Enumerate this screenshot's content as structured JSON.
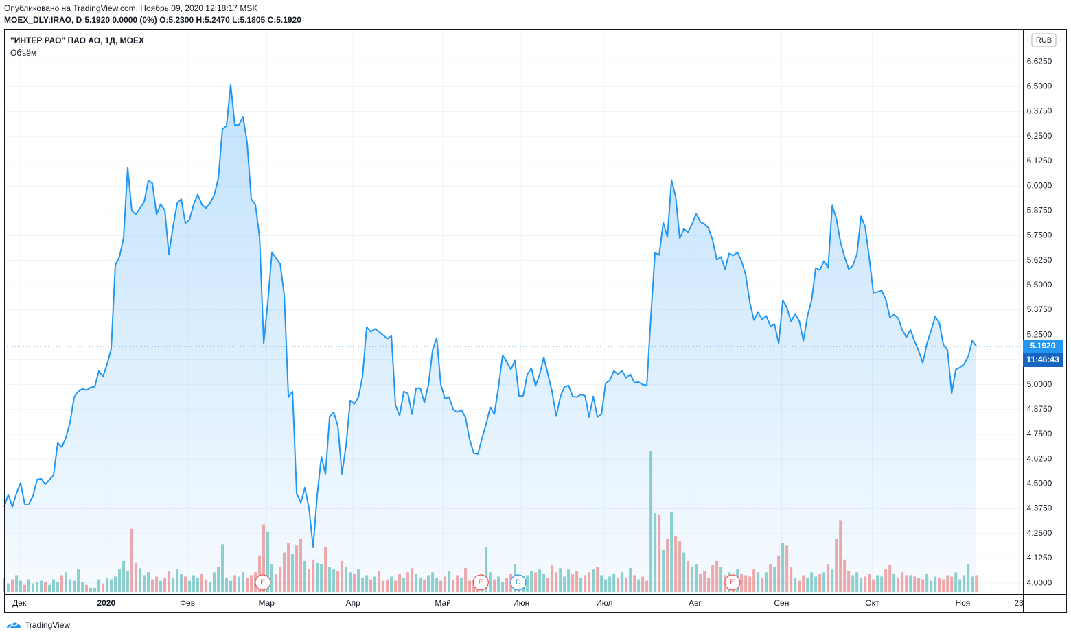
{
  "header": {
    "published": "Опубликовано на TradingView.com, Ноябрь 09, 2020 12:18:17 MSK",
    "symbol": "MOEX_DLY:IRAO, D",
    "quote": "5.1920 0.0000 (0%) O:5.2300 H:5.2470 L:5.1805 C:5.1920"
  },
  "footer": {
    "brand": "TradingView"
  },
  "chart_data": {
    "type": "area",
    "title": "\"ИНТЕР РАО\" ПАО АО, 1Д, MOEX",
    "currency": "RUB",
    "last_label": "5.1920",
    "countdown": "11:46:43",
    "xlim": [
      0,
      247.3
    ],
    "xticks": [
      {
        "value": 3.7,
        "label": "Дек"
      },
      {
        "value": 24.8,
        "label": "2020"
      },
      {
        "value": 44.5,
        "label": "Фев"
      },
      {
        "value": 63.7,
        "label": "Мар"
      },
      {
        "value": 84.7,
        "label": "Апр"
      },
      {
        "value": 106.5,
        "label": "Май"
      },
      {
        "value": 125.5,
        "label": "Июн"
      },
      {
        "value": 145.7,
        "label": "Июл"
      },
      {
        "value": 167.7,
        "label": "Авг"
      },
      {
        "value": 188.7,
        "label": "Сен"
      },
      {
        "value": 210.7,
        "label": "Окт"
      },
      {
        "value": 232.7,
        "label": "Ноя"
      },
      {
        "value": 246.3,
        "label": "23"
      }
    ],
    "ylim": [
      3.945,
      6.788
    ],
    "yticks": [
      {
        "value": 4,
        "label": "4.0000"
      },
      {
        "value": 4.125,
        "label": "4.1250"
      },
      {
        "value": 4.25,
        "label": "4.2500"
      },
      {
        "value": 4.375,
        "label": "4.3750"
      },
      {
        "value": 4.5,
        "label": "4.5000"
      },
      {
        "value": 4.625,
        "label": "4.6250"
      },
      {
        "value": 4.75,
        "label": "4.7500"
      },
      {
        "value": 4.875,
        "label": "4.8750"
      },
      {
        "value": 5,
        "label": "5.0000"
      },
      {
        "value": 5.125,
        "label": "5.1250"
      },
      {
        "value": 5.25,
        "label": "5.2500"
      },
      {
        "value": 5.375,
        "label": "5.3750"
      },
      {
        "value": 5.5,
        "label": "5.5000"
      },
      {
        "value": 5.625,
        "label": "5.6250"
      },
      {
        "value": 5.75,
        "label": "5.7500"
      },
      {
        "value": 5.875,
        "label": "5.8750"
      },
      {
        "value": 6,
        "label": "6.0000"
      },
      {
        "value": 6.125,
        "label": "6.1250"
      },
      {
        "value": 6.25,
        "label": "6.2500"
      },
      {
        "value": 6.375,
        "label": "6.3750"
      },
      {
        "value": 6.5,
        "label": "6.5000"
      },
      {
        "value": 6.625,
        "label": "6.6250"
      }
    ],
    "grid": true,
    "series": [
      {
        "name": "\"ИНТЕР РАО\" ПАО АО, 1Д, MOEX",
        "color": "#2196f3",
        "values": [
          4.384,
          4.446,
          4.384,
          4.453,
          4.505,
          4.398,
          4.398,
          4.439,
          4.522,
          4.526,
          4.498,
          4.522,
          4.543,
          4.706,
          4.685,
          4.733,
          4.809,
          4.937,
          4.965,
          4.979,
          4.972,
          4.986,
          4.989,
          5.069,
          5.041,
          5.103,
          5.18,
          5.602,
          5.643,
          5.74,
          6.093,
          5.875,
          5.857,
          5.889,
          5.92,
          6.027,
          6.013,
          5.857,
          5.909,
          5.878,
          5.657,
          5.795,
          5.913,
          5.934,
          5.813,
          5.83,
          5.906,
          5.958,
          5.906,
          5.889,
          5.913,
          5.954,
          6.037,
          6.286,
          6.304,
          6.511,
          6.307,
          6.307,
          6.349,
          6.217,
          5.934,
          5.906,
          5.743,
          5.207,
          5.415,
          5.667,
          5.636,
          5.608,
          5.449,
          4.937,
          4.965,
          4.453,
          4.405,
          4.481,
          4.377,
          4.18,
          4.446,
          4.636,
          4.55,
          4.837,
          4.861,
          4.792,
          4.55,
          4.695,
          4.92,
          4.903,
          4.937,
          5.041,
          5.29,
          5.266,
          5.28,
          5.266,
          5.249,
          5.231,
          5.245,
          4.896,
          4.844,
          4.965,
          4.955,
          4.851,
          4.982,
          4.982,
          4.91,
          5.0,
          5.173,
          5.235,
          5.0,
          4.93,
          4.937,
          4.875,
          4.861,
          4.872,
          4.834,
          4.723,
          4.654,
          4.65,
          4.73,
          4.802,
          4.886,
          4.851,
          4.989,
          5.148,
          5.114,
          5.076,
          5.121,
          4.941,
          4.944,
          5.052,
          5.083,
          4.993,
          5.052,
          5.138,
          5.052,
          4.965,
          4.841,
          4.937,
          4.989,
          4.996,
          4.941,
          4.937,
          4.951,
          4.944,
          4.837,
          4.941,
          4.837,
          4.851,
          5.007,
          5.02,
          5.069,
          5.052,
          5.069,
          5.034,
          5.052,
          5.01,
          5.013,
          5.0,
          4.996,
          5.346,
          5.664,
          5.653,
          5.816,
          5.743,
          6.03,
          5.947,
          5.736,
          5.785,
          5.768,
          5.809,
          5.861,
          5.819,
          5.809,
          5.788,
          5.726,
          5.629,
          5.643,
          5.581,
          5.66,
          5.65,
          5.667,
          5.622,
          5.553,
          5.415,
          5.325,
          5.363,
          5.328,
          5.346,
          5.294,
          5.304,
          5.207,
          5.425,
          5.387,
          5.318,
          5.356,
          5.321,
          5.221,
          5.346,
          5.425,
          5.588,
          5.577,
          5.622,
          5.588,
          5.902,
          5.837,
          5.719,
          5.643,
          5.581,
          5.598,
          5.657,
          5.847,
          5.795,
          5.636,
          5.463,
          5.467,
          5.474,
          5.429,
          5.339,
          5.352,
          5.335,
          5.276,
          5.238,
          5.276,
          5.218,
          5.169,
          5.11,
          5.207,
          5.273,
          5.342,
          5.311,
          5.2,
          5.173,
          4.955,
          5.076,
          5.086,
          5.103,
          5.141,
          5.221,
          5.192
        ]
      },
      {
        "name": "Объём",
        "up_color": "#26a69a",
        "down_color": "#ef5350",
        "values": [
          10,
          6,
          9,
          12,
          8,
          5,
          9,
          6,
          7,
          8,
          7,
          5,
          9,
          7,
          12,
          14,
          9,
          8,
          16,
          7,
          5,
          3,
          3,
          9,
          6,
          10,
          9,
          11,
          16,
          22,
          15,
          45,
          21,
          17,
          12,
          14,
          9,
          11,
          8,
          10,
          15,
          10,
          16,
          13,
          11,
          8,
          12,
          10,
          13,
          9,
          7,
          14,
          18,
          34,
          10,
          8,
          12,
          11,
          14,
          10,
          12,
          14,
          26,
          48,
          43,
          20,
          13,
          18,
          28,
          35,
          27,
          33,
          38,
          22,
          16,
          23,
          21,
          20,
          32,
          18,
          16,
          15,
          22,
          18,
          14,
          13,
          16,
          10,
          12,
          9,
          11,
          15,
          8,
          9,
          11,
          8,
          13,
          10,
          14,
          17,
          13,
          10,
          9,
          12,
          14,
          10,
          8,
          11,
          15,
          9,
          12,
          10,
          17,
          8,
          9,
          11,
          13,
          32,
          14,
          9,
          11,
          7,
          10,
          13,
          20,
          9,
          11,
          12,
          15,
          14,
          16,
          13,
          10,
          19,
          14,
          17,
          11,
          16,
          13,
          15,
          10,
          12,
          14,
          16,
          18,
          12,
          9,
          11,
          13,
          10,
          14,
          10,
          17,
          12,
          9,
          11,
          8,
          100,
          56,
          55,
          30,
          38,
          57,
          40,
          36,
          28,
          22,
          18,
          20,
          13,
          15,
          10,
          19,
          22,
          18,
          12,
          14,
          11,
          16,
          13,
          12,
          11,
          16,
          14,
          10,
          14,
          20,
          18,
          26,
          35,
          33,
          18,
          10,
          8,
          12,
          10,
          14,
          11,
          13,
          14,
          20,
          16,
          38,
          51,
          23,
          15,
          12,
          14,
          10,
          11,
          13,
          9,
          12,
          11,
          16,
          19,
          13,
          10,
          14,
          12,
          12,
          11,
          10,
          9,
          13,
          8,
          11,
          10,
          9,
          12,
          11,
          14,
          9,
          12,
          20,
          11,
          12
        ]
      }
    ],
    "events": [
      {
        "label": "E",
        "x": 62.8,
        "color": "#ef5350"
      },
      {
        "label": "E",
        "x": 115.7,
        "color": "#ef5350"
      },
      {
        "label": "D",
        "x": 124.8,
        "color": "#2196f3"
      },
      {
        "label": "E",
        "x": 176.8,
        "color": "#ef5350"
      }
    ]
  }
}
